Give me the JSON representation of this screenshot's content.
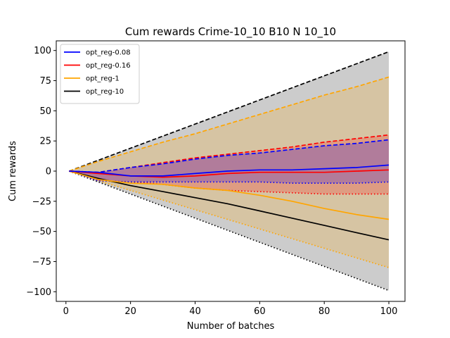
{
  "chart_data": {
    "type": "line",
    "title": "Cum rewards Crime-10_10 B10 N 10_10",
    "xlabel": "Number of batches",
    "ylabel": "Cum rewards",
    "xlim": [
      -3,
      105
    ],
    "ylim": [
      -108,
      108
    ],
    "xticks": [
      0,
      20,
      40,
      60,
      80,
      100
    ],
    "yticks": [
      -100,
      -75,
      -50,
      -25,
      0,
      25,
      50,
      75,
      100
    ],
    "legend_position": "top-left",
    "grid": false,
    "colors": {
      "opt_reg-0.08": "#0000ff",
      "opt_reg-0.16": "#ff0000",
      "opt_reg-1": "#ffa500",
      "opt_reg-10": "#000000"
    },
    "legend": [
      "opt_reg-0.08",
      "opt_reg-0.16",
      "opt_reg-1",
      "opt_reg-10"
    ],
    "series": [
      {
        "name": "opt_reg-0.08",
        "mean": [
          [
            1,
            0
          ],
          [
            10,
            -1
          ],
          [
            20,
            -4
          ],
          [
            30,
            -4
          ],
          [
            40,
            -2
          ],
          [
            50,
            0
          ],
          [
            60,
            1
          ],
          [
            70,
            1
          ],
          [
            80,
            2
          ],
          [
            90,
            3
          ],
          [
            100,
            5
          ]
        ],
        "upper": [
          [
            1,
            0
          ],
          [
            10,
            -1
          ],
          [
            20,
            3
          ],
          [
            30,
            6
          ],
          [
            40,
            10
          ],
          [
            50,
            13
          ],
          [
            60,
            15
          ],
          [
            70,
            18
          ],
          [
            80,
            21
          ],
          [
            90,
            23
          ],
          [
            100,
            26
          ]
        ],
        "lower": [
          [
            1,
            0
          ],
          [
            10,
            -8
          ],
          [
            20,
            -9
          ],
          [
            30,
            -9
          ],
          [
            40,
            -9
          ],
          [
            50,
            -9
          ],
          [
            60,
            -9
          ],
          [
            70,
            -10
          ],
          [
            80,
            -10
          ],
          [
            90,
            -10
          ],
          [
            100,
            -9
          ]
        ]
      },
      {
        "name": "opt_reg-0.16",
        "mean": [
          [
            1,
            0
          ],
          [
            10,
            -2
          ],
          [
            20,
            -4
          ],
          [
            30,
            -5
          ],
          [
            40,
            -4
          ],
          [
            50,
            -2
          ],
          [
            60,
            -1
          ],
          [
            70,
            -1
          ],
          [
            80,
            -1
          ],
          [
            90,
            0
          ],
          [
            100,
            1
          ]
        ],
        "upper": [
          [
            1,
            0
          ],
          [
            10,
            -1
          ],
          [
            20,
            3
          ],
          [
            30,
            7
          ],
          [
            40,
            11
          ],
          [
            50,
            14
          ],
          [
            60,
            17
          ],
          [
            70,
            20
          ],
          [
            80,
            24
          ],
          [
            90,
            27
          ],
          [
            100,
            30
          ]
        ],
        "lower": [
          [
            1,
            0
          ],
          [
            10,
            -8
          ],
          [
            20,
            -9
          ],
          [
            30,
            -11
          ],
          [
            40,
            -14
          ],
          [
            50,
            -16
          ],
          [
            60,
            -17
          ],
          [
            70,
            -18
          ],
          [
            80,
            -19
          ],
          [
            90,
            -19
          ],
          [
            100,
            -19
          ]
        ]
      },
      {
        "name": "opt_reg-1",
        "mean": [
          [
            1,
            0
          ],
          [
            10,
            -7
          ],
          [
            20,
            -10
          ],
          [
            30,
            -11
          ],
          [
            40,
            -14
          ],
          [
            50,
            -16
          ],
          [
            60,
            -20
          ],
          [
            70,
            -25
          ],
          [
            80,
            -31
          ],
          [
            90,
            -36
          ],
          [
            100,
            -40
          ]
        ],
        "upper": [
          [
            1,
            0
          ],
          [
            10,
            8
          ],
          [
            20,
            16
          ],
          [
            30,
            24
          ],
          [
            40,
            31
          ],
          [
            50,
            39
          ],
          [
            60,
            47
          ],
          [
            70,
            55
          ],
          [
            80,
            63
          ],
          [
            90,
            70
          ],
          [
            100,
            78
          ]
        ],
        "lower": [
          [
            1,
            0
          ],
          [
            10,
            -8
          ],
          [
            20,
            -16
          ],
          [
            30,
            -24
          ],
          [
            40,
            -32
          ],
          [
            50,
            -40
          ],
          [
            60,
            -48
          ],
          [
            70,
            -56
          ],
          [
            80,
            -64
          ],
          [
            90,
            -72
          ],
          [
            100,
            -80
          ]
        ]
      },
      {
        "name": "opt_reg-10",
        "mean": [
          [
            1,
            0
          ],
          [
            10,
            -6
          ],
          [
            20,
            -12
          ],
          [
            30,
            -17
          ],
          [
            40,
            -22
          ],
          [
            50,
            -27
          ],
          [
            60,
            -33
          ],
          [
            70,
            -39
          ],
          [
            80,
            -45
          ],
          [
            90,
            -51
          ],
          [
            100,
            -57
          ]
        ],
        "upper": [
          [
            1,
            0
          ],
          [
            100,
            99
          ]
        ],
        "lower": [
          [
            1,
            0
          ],
          [
            100,
            -99
          ]
        ]
      }
    ]
  }
}
